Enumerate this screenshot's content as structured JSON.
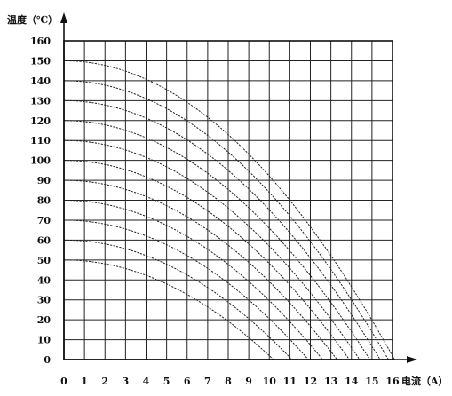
{
  "chart_data": {
    "type": "line",
    "ylabel": "温度（℃）",
    "xlabel": "电流（A）",
    "x_ticks": [
      0,
      1,
      2,
      3,
      4,
      5,
      6,
      7,
      8,
      9,
      10,
      11,
      12,
      13,
      14,
      15,
      16
    ],
    "y_ticks": [
      0,
      10,
      20,
      30,
      40,
      50,
      60,
      70,
      80,
      90,
      100,
      110,
      120,
      130,
      140,
      150,
      160
    ],
    "xlim": [
      0,
      16
    ],
    "ylim": [
      0,
      160
    ],
    "grid": true,
    "series": [
      {
        "start_value": 50,
        "x_at_zero": 10.2
      },
      {
        "start_value": 60,
        "x_at_zero": 11.1
      },
      {
        "start_value": 70,
        "x_at_zero": 11.9
      },
      {
        "start_value": 80,
        "x_at_zero": 12.6
      },
      {
        "start_value": 90,
        "x_at_zero": 13.3
      },
      {
        "start_value": 100,
        "x_at_zero": 13.9
      },
      {
        "start_value": 110,
        "x_at_zero": 14.4
      },
      {
        "start_value": 120,
        "x_at_zero": 14.9
      },
      {
        "start_value": 130,
        "x_at_zero": 15.4
      },
      {
        "start_value": 140,
        "x_at_zero": 15.8
      },
      {
        "start_value": 150,
        "x_at_zero": 16.1
      }
    ]
  }
}
